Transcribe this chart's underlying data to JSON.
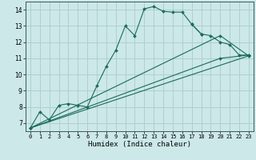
{
  "xlabel": "Humidex (Indice chaleur)",
  "bg_color": "#cce8e8",
  "grid_color": "#aacccc",
  "line_color": "#1a6b5a",
  "xlim": [
    -0.5,
    23.5
  ],
  "ylim": [
    6.5,
    14.5
  ],
  "xticks": [
    0,
    1,
    2,
    3,
    4,
    5,
    6,
    7,
    8,
    9,
    10,
    11,
    12,
    13,
    14,
    15,
    16,
    17,
    18,
    19,
    20,
    21,
    22,
    23
  ],
  "yticks": [
    7,
    8,
    9,
    10,
    11,
    12,
    13,
    14
  ],
  "curve1_x": [
    0,
    1,
    2,
    3,
    4,
    5,
    6,
    7,
    8,
    9,
    10,
    11,
    12,
    13,
    14,
    15,
    16,
    17,
    18
  ],
  "curve1_y": [
    6.7,
    7.7,
    7.2,
    8.1,
    8.2,
    8.1,
    8.0,
    9.3,
    10.5,
    11.5,
    13.0,
    12.4,
    14.05,
    14.2,
    13.9,
    13.85,
    13.85,
    13.1,
    12.5
  ],
  "curve2_x": [
    17,
    18,
    19,
    20,
    21,
    22,
    23
  ],
  "curve2_y": [
    13.1,
    12.5,
    12.4,
    12.0,
    11.85,
    11.2,
    11.2
  ],
  "line1_x": [
    0,
    23
  ],
  "line1_y": [
    6.7,
    11.15
  ],
  "line2_x": [
    0,
    20,
    23
  ],
  "line2_y": [
    6.7,
    12.4,
    11.15
  ],
  "line3_x": [
    0,
    20,
    23
  ],
  "line3_y": [
    6.7,
    11.0,
    11.2
  ]
}
